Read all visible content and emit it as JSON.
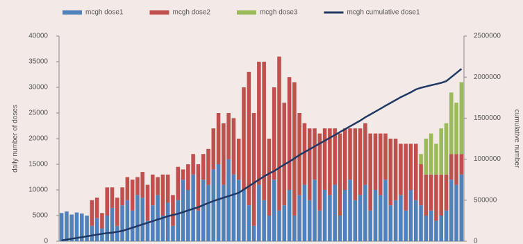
{
  "chart_data": {
    "type": "bar",
    "stacked": true,
    "y_label": "daily number of doses",
    "y2_label": "cumulative number",
    "categories": [
      null,
      null,
      null,
      null,
      null,
      null,
      null,
      null,
      null,
      null,
      null,
      null,
      null,
      null,
      null,
      null,
      null,
      null,
      null,
      null,
      null,
      null,
      null,
      null,
      null,
      null,
      null,
      null,
      null,
      null,
      null,
      null,
      null,
      null,
      null,
      null,
      null,
      null,
      null,
      null,
      null,
      null,
      null,
      null,
      null,
      null,
      null,
      null,
      null,
      null,
      null,
      null,
      null,
      null,
      null,
      null,
      null,
      null,
      null,
      null,
      null,
      null,
      null,
      null,
      null,
      null,
      null,
      null,
      null,
      null,
      null,
      null,
      null,
      null,
      null,
      null,
      null,
      null,
      null,
      null
    ],
    "ylim": [
      0,
      40000
    ],
    "yticks": [
      0,
      5000,
      10000,
      15000,
      20000,
      25000,
      30000,
      35000,
      40000
    ],
    "y2lim": [
      0,
      2500000
    ],
    "y2ticks": [
      0,
      500000,
      1000000,
      1500000,
      2000000,
      2500000
    ],
    "legend": "top",
    "series": [
      {
        "name": "mcgh dose1",
        "color": "#4f81bd",
        "values": [
          5500,
          5800,
          5200,
          5600,
          5400,
          5000,
          3000,
          4500,
          2500,
          5000,
          6500,
          3000,
          7000,
          8000,
          6000,
          9000,
          8500,
          4000,
          7000,
          9000,
          5000,
          7500,
          3000,
          8000,
          12000,
          10000,
          13000,
          6000,
          12000,
          11000,
          14000,
          15000,
          11000,
          16000,
          13000,
          12000,
          10000,
          7000,
          3000,
          11000,
          8000,
          5000,
          12000,
          6000,
          7000,
          10000,
          5000,
          9000,
          11000,
          8000,
          12000,
          6000,
          10000,
          9000,
          11000,
          5000,
          10000,
          12000,
          8000,
          9000,
          11000,
          6000,
          10000,
          9000,
          12000,
          7000,
          8000,
          9000,
          6000,
          10000,
          8000,
          7000,
          5000,
          6000,
          4000,
          5000,
          6000,
          12000,
          11000,
          13000
        ]
      },
      {
        "name": "mcgh dose2",
        "color": "#c0504d",
        "values": [
          0,
          0,
          0,
          0,
          0,
          0,
          5000,
          4000,
          3000,
          5500,
          4000,
          5500,
          3500,
          4500,
          6000,
          3500,
          5000,
          7000,
          6000,
          3500,
          8000,
          5500,
          6000,
          6500,
          2000,
          5000,
          4000,
          9000,
          5000,
          7000,
          8000,
          10000,
          12000,
          9000,
          11000,
          8000,
          20000,
          26000,
          22000,
          24000,
          27000,
          15000,
          18000,
          30000,
          20000,
          22000,
          26000,
          16000,
          12000,
          14000,
          10000,
          15000,
          12000,
          13000,
          11000,
          16000,
          12000,
          10000,
          14000,
          13000,
          12000,
          15000,
          11000,
          12000,
          9000,
          13000,
          12000,
          10000,
          13000,
          9000,
          11000,
          8000,
          8000,
          7000,
          9000,
          8000,
          7000,
          5000,
          6000,
          4000
        ]
      },
      {
        "name": "mcgh dose3",
        "color": "#9bbb59",
        "values": [
          0,
          0,
          0,
          0,
          0,
          0,
          0,
          0,
          0,
          0,
          0,
          0,
          0,
          0,
          0,
          0,
          0,
          0,
          0,
          0,
          0,
          0,
          0,
          0,
          0,
          0,
          0,
          0,
          0,
          0,
          0,
          0,
          0,
          0,
          0,
          0,
          0,
          0,
          0,
          0,
          0,
          0,
          0,
          0,
          0,
          0,
          0,
          0,
          0,
          0,
          0,
          0,
          0,
          0,
          0,
          0,
          0,
          0,
          0,
          0,
          0,
          0,
          0,
          0,
          0,
          0,
          0,
          0,
          0,
          0,
          0,
          2000,
          7000,
          8000,
          6000,
          9000,
          10000,
          12000,
          10000,
          14000
        ]
      },
      {
        "name": "mcgh cumulative dose1",
        "color": "#1f3864",
        "type": "line",
        "axis": "y2",
        "values": [
          10000,
          20000,
          30000,
          40000,
          50000,
          60000,
          70000,
          80000,
          90000,
          100000,
          105000,
          115000,
          126000,
          145000,
          165000,
          185000,
          205000,
          225000,
          245000,
          265000,
          285000,
          305000,
          320000,
          335000,
          355000,
          375000,
          395000,
          415000,
          440000,
          465000,
          490000,
          510000,
          530000,
          550000,
          570000,
          590000,
          630000,
          670000,
          710000,
          750000,
          790000,
          825000,
          855000,
          895000,
          935000,
          970000,
          1010000,
          1050000,
          1085000,
          1120000,
          1155000,
          1190000,
          1225000,
          1260000,
          1295000,
          1330000,
          1365000,
          1400000,
          1435000,
          1470000,
          1510000,
          1545000,
          1580000,
          1615000,
          1650000,
          1685000,
          1720000,
          1755000,
          1785000,
          1815000,
          1850000,
          1870000,
          1885000,
          1900000,
          1915000,
          1930000,
          1950000,
          2000000,
          2050000,
          2100000
        ]
      }
    ]
  }
}
